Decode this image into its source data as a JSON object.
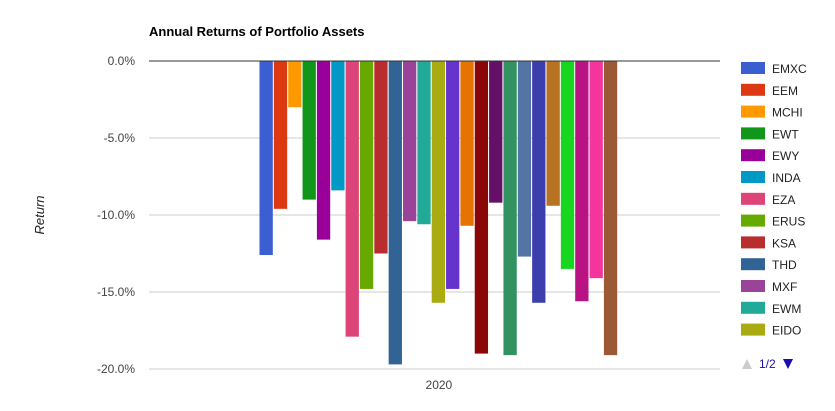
{
  "chart_data": {
    "type": "bar",
    "title": "Annual Returns of Portfolio Assets",
    "xlabel": "",
    "ylabel": "Return",
    "categories": [
      "2020"
    ],
    "ylim": [
      -20,
      0
    ],
    "yticks": [
      "0.0%",
      "-5.0%",
      "-10.0%",
      "-15.0%",
      "-20.0%"
    ],
    "grid": true,
    "legend_position": "right",
    "series": [
      {
        "name": "EMXC",
        "color": "#3b5fd1",
        "values": [
          -12.6
        ]
      },
      {
        "name": "EEM",
        "color": "#dc3912",
        "values": [
          -9.6
        ]
      },
      {
        "name": "MCHI",
        "color": "#ff9900",
        "values": [
          -3.0
        ]
      },
      {
        "name": "EWT",
        "color": "#109618",
        "values": [
          -9.0
        ]
      },
      {
        "name": "EWY",
        "color": "#990099",
        "values": [
          -11.6
        ]
      },
      {
        "name": "INDA",
        "color": "#0099c6",
        "values": [
          -8.4
        ]
      },
      {
        "name": "EZA",
        "color": "#dd4477",
        "values": [
          -17.9
        ]
      },
      {
        "name": "ERUS",
        "color": "#66aa00",
        "values": [
          -14.8
        ]
      },
      {
        "name": "KSA",
        "color": "#b82e2e",
        "values": [
          -12.5
        ]
      },
      {
        "name": "THD",
        "color": "#316395",
        "values": [
          -19.7
        ]
      },
      {
        "name": "MXF",
        "color": "#994499",
        "values": [
          -10.4
        ]
      },
      {
        "name": "EWM",
        "color": "#22aa99",
        "values": [
          -10.6
        ]
      },
      {
        "name": "EIDO",
        "color": "#aaaa11",
        "values": [
          -15.7
        ]
      },
      {
        "name": "",
        "color": "#6633cc",
        "values": [
          -14.8
        ]
      },
      {
        "name": "",
        "color": "#e67300",
        "values": [
          -10.7
        ]
      },
      {
        "name": "",
        "color": "#8b0707",
        "values": [
          -19.0
        ]
      },
      {
        "name": "",
        "color": "#651067",
        "values": [
          -9.2
        ]
      },
      {
        "name": "",
        "color": "#329262",
        "values": [
          -19.1
        ]
      },
      {
        "name": "",
        "color": "#5574a6",
        "values": [
          -12.7
        ]
      },
      {
        "name": "",
        "color": "#3b3eac",
        "values": [
          -15.7
        ]
      },
      {
        "name": "",
        "color": "#b77322",
        "values": [
          -9.4
        ]
      },
      {
        "name": "",
        "color": "#16d620",
        "values": [
          -13.5
        ]
      },
      {
        "name": "",
        "color": "#b91383",
        "values": [
          -15.6
        ]
      },
      {
        "name": "",
        "color": "#f4359e",
        "values": [
          -14.1
        ]
      },
      {
        "name": "",
        "color": "#9c5935",
        "values": [
          -19.1
        ]
      }
    ],
    "legend_visible_count": 13,
    "pager": {
      "label": "1/2"
    }
  }
}
